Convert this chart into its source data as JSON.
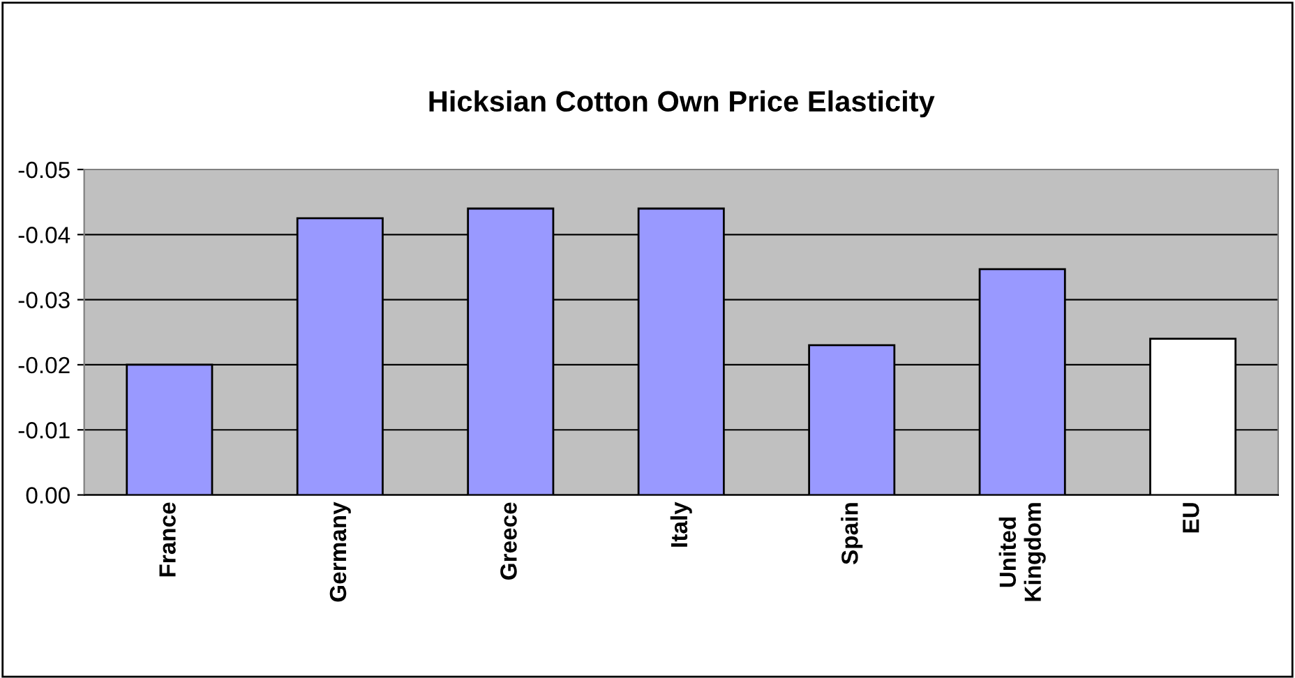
{
  "chart_data": {
    "type": "bar",
    "title": "Hicksian Cotton Own Price Elasticity",
    "categories": [
      "France",
      "Germany",
      "Greece",
      "Italy",
      "Spain",
      "United\nKingdom",
      "EU"
    ],
    "values": [
      -0.02,
      -0.0425,
      -0.044,
      -0.044,
      -0.023,
      -0.0347,
      -0.024
    ],
    "colors": [
      "#9999ff",
      "#9999ff",
      "#9999ff",
      "#9999ff",
      "#9999ff",
      "#9999ff",
      "#ffffff"
    ],
    "ylim": [
      0,
      -0.05
    ],
    "yticks": [
      {
        "value": 0,
        "label": "0.00"
      },
      {
        "value": -0.01,
        "label": "-0.01"
      },
      {
        "value": -0.02,
        "label": "-0.02"
      },
      {
        "value": -0.03,
        "label": "-0.03"
      },
      {
        "value": -0.04,
        "label": "-0.04"
      },
      {
        "value": -0.05,
        "label": "-0.05"
      }
    ],
    "grid": "y",
    "legend": false
  }
}
